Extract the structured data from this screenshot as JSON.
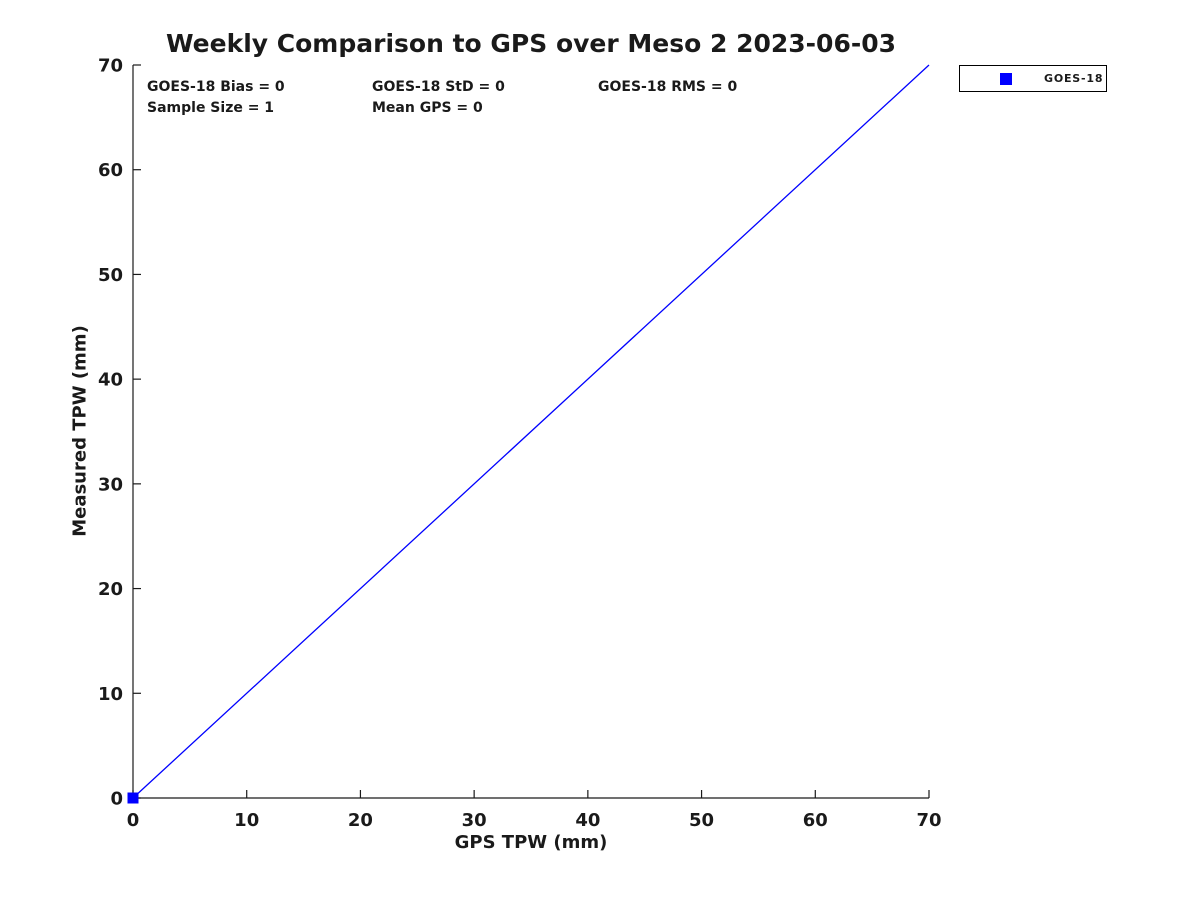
{
  "figure": {
    "background": "#ffffff"
  },
  "chart_data": {
    "type": "scatter",
    "title": "Weekly Comparison to GPS over Meso 2 2023-06-03",
    "xlabel": "GPS TPW (mm)",
    "ylabel": "Measured TPW (mm)",
    "xlim": [
      0,
      70
    ],
    "ylim": [
      0,
      70
    ],
    "xticks": [
      0,
      10,
      20,
      30,
      40,
      50,
      60,
      70
    ],
    "yticks": [
      0,
      10,
      20,
      30,
      40,
      50,
      60,
      70
    ],
    "grid": false,
    "axis_color": "#1a1a1a",
    "text_color": "#1a1a1a",
    "series": [
      {
        "name": "GOES-18",
        "type": "scatter",
        "marker": "square",
        "color": "#0000ff",
        "marker_size": 11,
        "points": [
          [
            0,
            0
          ]
        ]
      },
      {
        "name": "reference-line",
        "type": "line",
        "color": "#0000ff",
        "line_width": 1.3,
        "points": [
          [
            0,
            0
          ],
          [
            70,
            70
          ]
        ]
      }
    ],
    "annotations": [
      {
        "text": "GOES-18 Bias = 0"
      },
      {
        "text": "GOES-18 StD = 0"
      },
      {
        "text": "GOES-18 RMS = 0"
      },
      {
        "text": "Sample Size = 1"
      },
      {
        "text": "Mean GPS = 0"
      }
    ],
    "legend": {
      "position": "top-right-outside",
      "entries": [
        {
          "label": "GOES-18",
          "marker": "square",
          "color": "#0000ff"
        }
      ]
    }
  }
}
